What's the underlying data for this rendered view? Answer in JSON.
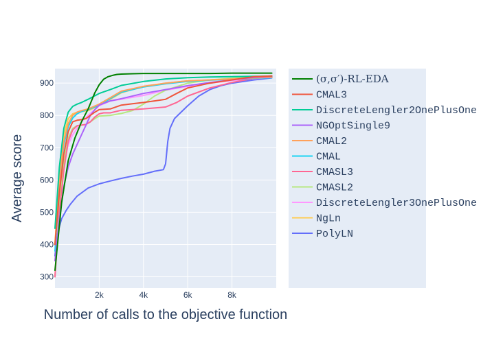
{
  "chart_data": {
    "type": "line",
    "title": "",
    "xlabel": "Number of calls to the objective function",
    "ylabel": "Average score",
    "xlim": [
      0,
      10000
    ],
    "ylim": [
      265,
      945
    ],
    "xticks": [
      2000,
      4000,
      6000,
      8000
    ],
    "xtick_labels": [
      "2k",
      "4k",
      "6k",
      "8k"
    ],
    "yticks": [
      300,
      400,
      500,
      600,
      700,
      800,
      900
    ],
    "ytick_labels": [
      "300",
      "400",
      "500",
      "600",
      "700",
      "800",
      "900"
    ],
    "grid": true,
    "legend_position": "right",
    "plot_background": "#E5ECF6",
    "series": [
      {
        "name": "(σ,σ′)-RL-EDA",
        "color": "#008000",
        "x": [
          0,
          300,
          600,
          900,
          1200,
          1500,
          1800,
          2000,
          2200,
          2400,
          2600,
          2800,
          3000,
          3500,
          4000,
          5000,
          6000,
          7000,
          8000,
          9000,
          9800
        ],
        "y": [
          320,
          530,
          660,
          730,
          780,
          820,
          870,
          895,
          912,
          920,
          924,
          927,
          928,
          929,
          930,
          930,
          930,
          930,
          931,
          931,
          931
        ]
      },
      {
        "name": "CMAL3",
        "color": "#EF553B",
        "x": [
          0,
          200,
          400,
          600,
          800,
          1000,
          1200,
          1400,
          1600,
          1800,
          2000,
          2500,
          3000,
          3500,
          4000,
          4500,
          5000,
          5500,
          6000,
          7000,
          8000,
          9000,
          9800
        ],
        "y": [
          400,
          560,
          680,
          750,
          780,
          785,
          787,
          790,
          800,
          810,
          818,
          820,
          832,
          836,
          840,
          845,
          850,
          868,
          885,
          900,
          910,
          920,
          922
        ]
      },
      {
        "name": "DiscreteLengler2OnePlusOne",
        "color": "#00CC96",
        "x": [
          0,
          200,
          400,
          600,
          800,
          1000,
          1200,
          1500,
          2000,
          2500,
          3000,
          4000,
          5000,
          6000,
          7000,
          8000,
          9000,
          9800
        ],
        "y": [
          450,
          640,
          760,
          810,
          828,
          835,
          840,
          850,
          868,
          880,
          893,
          905,
          913,
          917,
          919,
          920,
          921,
          922
        ]
      },
      {
        "name": "NGOptSingle9",
        "color": "#AB63FA",
        "x": [
          0,
          200,
          400,
          600,
          800,
          1000,
          1200,
          1400,
          1600,
          1800,
          2000,
          2500,
          3000,
          4000,
          5000,
          6000,
          7000,
          8000,
          9000,
          9800
        ],
        "y": [
          350,
          480,
          580,
          640,
          680,
          710,
          740,
          770,
          800,
          818,
          832,
          845,
          852,
          868,
          880,
          892,
          902,
          910,
          918,
          921
        ]
      },
      {
        "name": "CMAL2",
        "color": "#FFA15A",
        "x": [
          0,
          200,
          400,
          600,
          800,
          1000,
          1200,
          1500,
          2000,
          2500,
          3000,
          4000,
          5000,
          6000,
          7000,
          8000,
          9000,
          9800
        ],
        "y": [
          400,
          600,
          720,
          775,
          800,
          810,
          815,
          820,
          835,
          855,
          875,
          890,
          900,
          907,
          910,
          913,
          916,
          918
        ]
      },
      {
        "name": "CMAL",
        "color": "#19D3F3",
        "x": [
          0,
          200,
          400,
          600,
          800,
          1000,
          1200,
          1500,
          2000,
          2500,
          3000,
          4000,
          5000,
          6000,
          7000,
          8000,
          9000,
          9800
        ],
        "y": [
          380,
          590,
          710,
          765,
          792,
          805,
          812,
          818,
          832,
          852,
          872,
          888,
          898,
          905,
          909,
          912,
          915,
          917
        ]
      },
      {
        "name": "CMASL3",
        "color": "#FF6692",
        "x": [
          0,
          200,
          400,
          600,
          800,
          1000,
          1200,
          1400,
          1600,
          1800,
          2000,
          2200,
          2500,
          3000,
          3500,
          4000,
          4500,
          5000,
          5500,
          6000,
          7000,
          8000,
          9000,
          9800
        ],
        "y": [
          300,
          500,
          630,
          720,
          755,
          768,
          770,
          772,
          780,
          795,
          805,
          808,
          808,
          816,
          818,
          820,
          823,
          826,
          840,
          860,
          885,
          902,
          915,
          918
        ]
      },
      {
        "name": "CMASL2",
        "color": "#B6E880",
        "x": [
          0,
          200,
          400,
          600,
          800,
          1000,
          1200,
          1400,
          1600,
          1800,
          2000,
          2500,
          3000,
          3500,
          4000,
          4500,
          5000,
          6000,
          7000,
          8000,
          9000,
          9800
        ],
        "y": [
          300,
          520,
          650,
          730,
          760,
          768,
          770,
          772,
          780,
          790,
          798,
          800,
          806,
          815,
          835,
          860,
          878,
          900,
          910,
          915,
          920,
          922
        ]
      },
      {
        "name": "DiscreteLengler3OnePlusOne",
        "color": "#FF97FF",
        "x": [
          0,
          200,
          400,
          600,
          800,
          1000,
          1200,
          1500,
          2000,
          2500,
          3000,
          4000,
          5000,
          6000,
          7000,
          8000,
          9000,
          9800
        ],
        "y": [
          300,
          520,
          650,
          710,
          740,
          760,
          780,
          800,
          830,
          845,
          850,
          862,
          878,
          890,
          900,
          908,
          914,
          918
        ]
      },
      {
        "name": "NgLn",
        "color": "#FECB52",
        "x": [
          0,
          200,
          400,
          600,
          800,
          1000,
          1200,
          1500,
          2000,
          2500,
          3000,
          4000,
          5000,
          6000,
          7000,
          8000,
          9000,
          9800
        ],
        "y": [
          400,
          620,
          740,
          790,
          805,
          810,
          812,
          815,
          830,
          850,
          870,
          890,
          900,
          907,
          910,
          913,
          916,
          918
        ]
      },
      {
        "name": "PolyLN",
        "color": "#636EFA",
        "x": [
          0,
          100,
          300,
          500,
          700,
          1000,
          1500,
          2000,
          2500,
          3000,
          3500,
          4000,
          4500,
          4900,
          5000,
          5100,
          5200,
          5400,
          5700,
          6000,
          6500,
          7000,
          7500,
          8000,
          9000,
          9800
        ],
        "y": [
          365,
          430,
          480,
          505,
          525,
          550,
          575,
          588,
          597,
          605,
          612,
          618,
          627,
          632,
          650,
          720,
          760,
          790,
          810,
          830,
          860,
          880,
          892,
          900,
          910,
          916
        ]
      }
    ]
  }
}
